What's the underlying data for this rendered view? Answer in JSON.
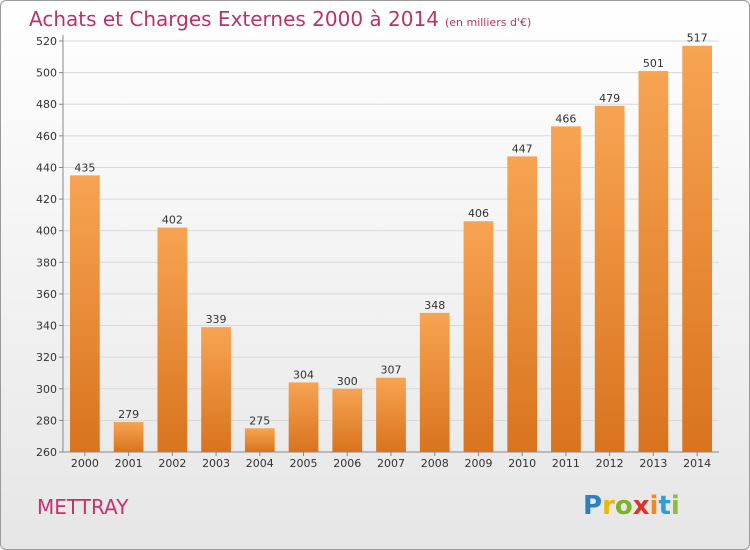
{
  "title": "Achats et Charges Externes 2000 à 2014",
  "subtitle": "(en milliers d'€)",
  "commune": "METTRAY",
  "logo_text": "Proxiti",
  "colors": {
    "title": "#b8336a",
    "bar_light": "#f7a452",
    "bar_dark": "#d9731e",
    "grid": "#d8d8d8",
    "axis_text": "#333333"
  },
  "chart_data": {
    "type": "bar",
    "title": "Achats et Charges Externes 2000 à 2014",
    "subtitle": "(en milliers d'€)",
    "xlabel": "",
    "ylabel": "",
    "categories": [
      "2000",
      "2001",
      "2002",
      "2003",
      "2004",
      "2005",
      "2006",
      "2007",
      "2008",
      "2009",
      "2010",
      "2011",
      "2012",
      "2013",
      "2014"
    ],
    "values": [
      435,
      279,
      402,
      339,
      275,
      304,
      300,
      307,
      348,
      406,
      447,
      466,
      479,
      501,
      517
    ],
    "data_labels": [
      "435",
      "279",
      "402",
      "339",
      "275",
      "304",
      "300",
      "307",
      "348",
      "406",
      "447",
      "466",
      "479",
      "501",
      "517"
    ],
    "ylim": [
      260,
      520
    ],
    "yticks": [
      260,
      280,
      300,
      320,
      340,
      360,
      380,
      400,
      420,
      440,
      460,
      480,
      500,
      520
    ],
    "grid": true,
    "legend": "none"
  }
}
